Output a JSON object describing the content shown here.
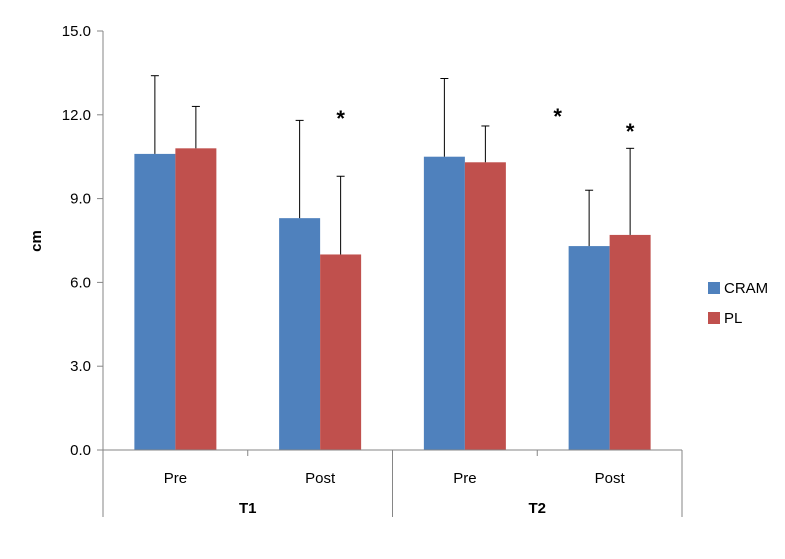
{
  "chart_data": {
    "type": "bar",
    "categories": [
      "Pre",
      "Post",
      "Pre",
      "Post"
    ],
    "groups": [
      {
        "label": "T1",
        "categories": [
          0,
          1
        ]
      },
      {
        "label": "T2",
        "categories": [
          2,
          3
        ]
      }
    ],
    "series": [
      {
        "name": "CRAM",
        "color": "#4f81bd",
        "values": [
          10.6,
          8.3,
          10.5,
          7.3
        ],
        "error": [
          2.8,
          3.5,
          2.8,
          2.0
        ]
      },
      {
        "name": "PL",
        "color": "#c0504d",
        "values": [
          10.8,
          7.0,
          10.3,
          7.7
        ],
        "error": [
          1.5,
          2.8,
          1.3,
          3.1
        ]
      }
    ],
    "ylabel": "cm",
    "xlabel": "",
    "ylim": [
      0,
      15
    ],
    "yticks": [
      "0.0",
      "3.0",
      "6.0",
      "9.0",
      "12.0",
      "15.0"
    ],
    "significance": [
      {
        "category": 1,
        "series": 1,
        "label": "*"
      },
      {
        "category": 3,
        "series": 0,
        "label": "*"
      },
      {
        "category": 3,
        "series": 1,
        "label": "*"
      }
    ],
    "legend": "right",
    "grid": false
  }
}
